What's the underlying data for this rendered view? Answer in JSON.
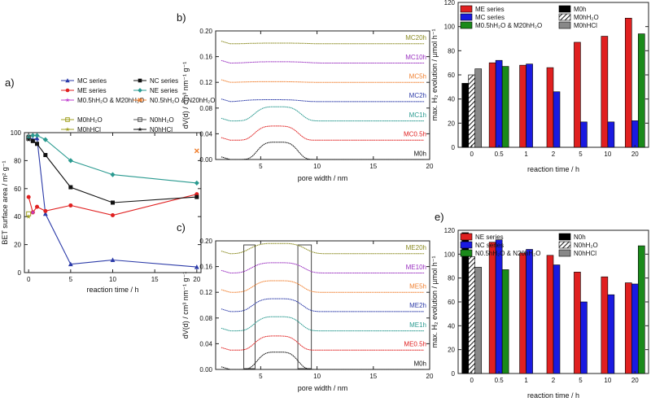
{
  "figure": {
    "chart_data": [
      {
        "id": "a",
        "panel_label": "a)",
        "type": "line",
        "xlabel": "reaction time / h",
        "ylabel": "BET surface area / m² g⁻¹",
        "xlim": [
          -0.5,
          20.5
        ],
        "ylim": [
          0,
          100
        ],
        "xticks": [
          0,
          5,
          10,
          15,
          20
        ],
        "yticks": [
          0,
          20,
          40,
          60,
          80,
          100
        ],
        "legend_position": "top-right",
        "series": [
          {
            "name": "MC series",
            "color": "#2b3aa8",
            "marker": "triangle",
            "x": [
              0,
              0.5,
              1,
              2,
              5,
              10,
              20
            ],
            "y": [
              97,
              95,
              96,
              42,
              6,
              9,
              4
            ]
          },
          {
            "name": "ME series",
            "color": "#e02020",
            "marker": "circle",
            "x": [
              0,
              0.5,
              1,
              2,
              5,
              10,
              20
            ],
            "y": [
              54,
              43,
              47,
              44,
              48,
              41,
              56
            ]
          },
          {
            "name": "M0.5hH₂O & M20hH₂O",
            "color": "#c040d0",
            "marker": "star",
            "x": [
              0.5
            ],
            "y": [
              43
            ]
          },
          {
            "name": "M0hH₂O",
            "color": "#a0a020",
            "marker": "square-open",
            "x": [
              0
            ],
            "y": [
              42
            ]
          },
          {
            "name": "M0hHCl",
            "color": "#a0a020",
            "marker": "star",
            "x": [
              0
            ],
            "y": [
              40
            ]
          },
          {
            "name": "NC series",
            "color": "#111111",
            "marker": "square",
            "x": [
              0,
              0.5,
              1,
              2,
              5,
              10,
              20
            ],
            "y": [
              97,
              94,
              92,
              84,
              61,
              50,
              54
            ]
          },
          {
            "name": "NE series",
            "color": "#2a9a90",
            "marker": "diamond",
            "x": [
              0,
              0.5,
              1,
              2,
              5,
              10,
              20
            ],
            "y": [
              97,
              98,
              98,
              95,
              80,
              70,
              64
            ]
          },
          {
            "name": "N0.5hH₂O & N20hH₂O",
            "color": "#f08030",
            "marker": "x",
            "x": [
              20
            ],
            "y": [
              87
            ]
          },
          {
            "name": "N0hH₂O",
            "color": "#555555",
            "marker": "square-open",
            "x": [
              0
            ],
            "y": [
              96
            ]
          },
          {
            "name": "N0hHCl",
            "color": "#111111",
            "marker": "star",
            "x": [
              0
            ],
            "y": [
              95
            ]
          }
        ]
      },
      {
        "id": "b",
        "panel_label": "b)",
        "type": "line",
        "xlabel": "pore width / nm",
        "ylabel": "dV(d) / cm³ nm⁻¹ g⁻¹",
        "xlim": [
          1,
          20
        ],
        "ylim": [
          0,
          0.2
        ],
        "xticks": [
          5,
          10,
          15,
          20
        ],
        "yticks": [
          0.0,
          0.04,
          0.08,
          0.12,
          0.16,
          0.2
        ],
        "ytick_labels": [
          "0.00",
          "0.04",
          "0.08",
          "0.12",
          "0.16",
          "0.20"
        ],
        "series": [
          {
            "name": "M0h",
            "color": "#111111",
            "offset": 0.0,
            "peak": 0.027,
            "center": 6.5,
            "width": 1.4
          },
          {
            "name": "MC0.5h",
            "color": "#e02020",
            "offset": 0.03,
            "peak": 0.022,
            "center": 6.4,
            "width": 1.5
          },
          {
            "name": "MC1h",
            "color": "#2a9a90",
            "offset": 0.06,
            "peak": 0.022,
            "center": 6.5,
            "width": 1.6
          },
          {
            "name": "MC2h",
            "color": "#2b3aa8",
            "offset": 0.09,
            "peak": 0.003,
            "center": 6.0,
            "width": 2.0
          },
          {
            "name": "MC5h",
            "color": "#f08030",
            "offset": 0.12,
            "peak": 0.001,
            "center": 6.0,
            "width": 2.0
          },
          {
            "name": "MC10h",
            "color": "#9a30c0",
            "offset": 0.15,
            "peak": 0.002,
            "center": 6.5,
            "width": 2.0
          },
          {
            "name": "MC20h",
            "color": "#8a8a20",
            "offset": 0.18,
            "peak": 0.001,
            "center": 6.5,
            "width": 2.0
          }
        ]
      },
      {
        "id": "c",
        "panel_label": "c)",
        "type": "line",
        "xlabel": "pore width / nm",
        "ylabel": "dV(d) / cm³ nm⁻¹ g⁻¹",
        "xlim": [
          1,
          20
        ],
        "ylim": [
          0,
          0.2
        ],
        "xticks": [
          5,
          10,
          15,
          20
        ],
        "yticks": [
          0.0,
          0.04,
          0.08,
          0.12,
          0.16,
          0.2
        ],
        "ytick_labels": [
          "0.00",
          "0.04",
          "0.08",
          "0.12",
          "0.16",
          "0.20"
        ],
        "annotation_boxes_nm": [
          [
            3.5,
            4.5
          ],
          [
            8.3,
            9.5
          ]
        ],
        "series": [
          {
            "name": "M0h",
            "color": "#111111",
            "offset": 0.0,
            "peak": 0.027,
            "center": 6.5,
            "width": 1.4
          },
          {
            "name": "ME0.5h",
            "color": "#e02020",
            "offset": 0.03,
            "peak": 0.022,
            "center": 6.4,
            "width": 1.5
          },
          {
            "name": "ME1h",
            "color": "#2a9a90",
            "offset": 0.06,
            "peak": 0.022,
            "center": 6.5,
            "width": 1.6
          },
          {
            "name": "ME2h",
            "color": "#2b3aa8",
            "offset": 0.09,
            "peak": 0.02,
            "center": 6.5,
            "width": 1.7
          },
          {
            "name": "ME5h",
            "color": "#f08030",
            "offset": 0.12,
            "peak": 0.018,
            "center": 6.5,
            "width": 1.7
          },
          {
            "name": "ME10h",
            "color": "#9a30c0",
            "offset": 0.15,
            "peak": 0.016,
            "center": 6.5,
            "width": 1.8
          },
          {
            "name": "ME20h",
            "color": "#8a8a20",
            "offset": 0.18,
            "peak": 0.016,
            "center": 6.5,
            "width": 1.9
          }
        ]
      },
      {
        "id": "d",
        "panel_label": "d)",
        "type": "bar",
        "xlabel": "reaction time / h",
        "ylabel": "max. H₂ evolution / µmol h⁻¹",
        "ylim": [
          0,
          120
        ],
        "yticks": [
          0,
          20,
          40,
          60,
          80,
          100,
          120
        ],
        "categories": [
          "0",
          "0.5",
          "1",
          "2",
          "5",
          "10",
          "20"
        ],
        "legend": [
          {
            "name": "ME series",
            "color": "#e02020",
            "pattern": "solid"
          },
          {
            "name": "MC series",
            "color": "#1a1ae0",
            "pattern": "solid"
          },
          {
            "name": "M0.5hH₂O & M20hH₂O",
            "color": "#1a8a1a",
            "pattern": "solid"
          },
          {
            "name": "M0h",
            "color": "#000000",
            "pattern": "solid"
          },
          {
            "name": "M0hH₂O",
            "color": "#333333",
            "pattern": "hatch"
          },
          {
            "name": "M0hHCl",
            "color": "#888888",
            "pattern": "solid"
          }
        ],
        "groups": [
          {
            "category": "0",
            "bars": [
              {
                "series": "M0h",
                "value": 53
              },
              {
                "series": "M0hH₂O",
                "value": 60
              },
              {
                "series": "M0hHCl",
                "value": 65
              }
            ]
          },
          {
            "category": "0.5",
            "bars": [
              {
                "series": "ME series",
                "value": 70
              },
              {
                "series": "MC series",
                "value": 72
              },
              {
                "series": "M0.5hH₂O & M20hH₂O",
                "value": 67
              }
            ]
          },
          {
            "category": "1",
            "bars": [
              {
                "series": "ME series",
                "value": 68
              },
              {
                "series": "MC series",
                "value": 69
              }
            ]
          },
          {
            "category": "2",
            "bars": [
              {
                "series": "ME series",
                "value": 66
              },
              {
                "series": "MC series",
                "value": 46
              }
            ]
          },
          {
            "category": "5",
            "bars": [
              {
                "series": "ME series",
                "value": 87
              },
              {
                "series": "MC series",
                "value": 21
              }
            ]
          },
          {
            "category": "10",
            "bars": [
              {
                "series": "ME series",
                "value": 92
              },
              {
                "series": "MC series",
                "value": 21
              }
            ]
          },
          {
            "category": "20",
            "bars": [
              {
                "series": "ME series",
                "value": 107
              },
              {
                "series": "MC series",
                "value": 22
              },
              {
                "series": "M0.5hH₂O & M20hH₂O",
                "value": 94
              }
            ]
          }
        ]
      },
      {
        "id": "e",
        "panel_label": "e)",
        "type": "bar",
        "xlabel": "reaction time / h",
        "ylabel": "max. H₂ evolution / µmol h⁻¹",
        "ylim": [
          0,
          120
        ],
        "yticks": [
          0,
          20,
          40,
          60,
          80,
          100,
          120
        ],
        "categories": [
          "0",
          "0.5",
          "1",
          "2",
          "5",
          "10",
          "20"
        ],
        "legend": [
          {
            "name": "NE series",
            "color": "#e02020",
            "pattern": "solid"
          },
          {
            "name": "NC series",
            "color": "#1a1ae0",
            "pattern": "solid"
          },
          {
            "name": "N0.5hH₂O & N20hH₂O",
            "color": "#1a8a1a",
            "pattern": "solid"
          },
          {
            "name": "N0h",
            "color": "#000000",
            "pattern": "solid"
          },
          {
            "name": "N0hH₂O",
            "color": "#333333",
            "pattern": "hatch"
          },
          {
            "name": "N0hHCl",
            "color": "#888888",
            "pattern": "solid"
          }
        ],
        "groups": [
          {
            "category": "0",
            "bars": [
              {
                "series": "N0h",
                "value": 118
              },
              {
                "series": "N0hH₂O",
                "value": 98
              },
              {
                "series": "N0hHCl",
                "value": 89
              }
            ]
          },
          {
            "category": "0.5",
            "bars": [
              {
                "series": "NE series",
                "value": 110
              },
              {
                "series": "NC series",
                "value": 112
              },
              {
                "series": "N0.5hH₂O & N20hH₂O",
                "value": 87
              }
            ]
          },
          {
            "category": "1",
            "bars": [
              {
                "series": "NE series",
                "value": 101
              },
              {
                "series": "NC series",
                "value": 104
              }
            ]
          },
          {
            "category": "2",
            "bars": [
              {
                "series": "NE series",
                "value": 99
              },
              {
                "series": "NC series",
                "value": 91
              }
            ]
          },
          {
            "category": "5",
            "bars": [
              {
                "series": "NE series",
                "value": 85
              },
              {
                "series": "NC series",
                "value": 60
              }
            ]
          },
          {
            "category": "10",
            "bars": [
              {
                "series": "NE series",
                "value": 81
              },
              {
                "series": "NC series",
                "value": 66
              }
            ]
          },
          {
            "category": "20",
            "bars": [
              {
                "series": "NE series",
                "value": 76
              },
              {
                "series": "NC series",
                "value": 75
              },
              {
                "series": "N0.5hH₂O & N20hH₂O",
                "value": 107
              }
            ]
          }
        ]
      }
    ]
  }
}
